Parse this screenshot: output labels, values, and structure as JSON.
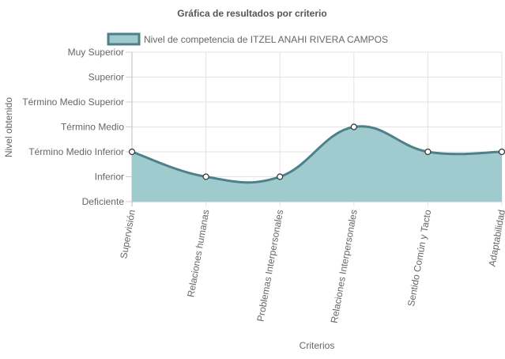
{
  "chart_data": {
    "type": "area",
    "title": "Gráfica de resultados por criterio",
    "xlabel": "Criterios",
    "ylabel": "Nivel obtenido",
    "y_levels": [
      "Deficiente",
      "Inferior",
      "Término Medio Inferior",
      "Término Medio",
      "Término Medio Superior",
      "Superior",
      "Muy Superior"
    ],
    "categories": [
      "Supervisión",
      "Relaciones humanas",
      "Problemas Interpersonales",
      "Relaciones Interpersonales",
      "Sentido Común y Tacto",
      "Adaptabilidad"
    ],
    "ylim": [
      0,
      6
    ],
    "grid": true,
    "legend_position": "top",
    "series": [
      {
        "name": "Nivel de competencia de ITZEL ANAHI RIVERA CAMPOS",
        "values": [
          2,
          1,
          1,
          3,
          2,
          2
        ],
        "value_labels": [
          "Término Medio Inferior",
          "Inferior",
          "Inferior",
          "Término Medio",
          "Término Medio Inferior",
          "Término Medio Inferior"
        ],
        "fill_color": "#9fcbce",
        "line_color": "#4f7f88"
      }
    ]
  }
}
